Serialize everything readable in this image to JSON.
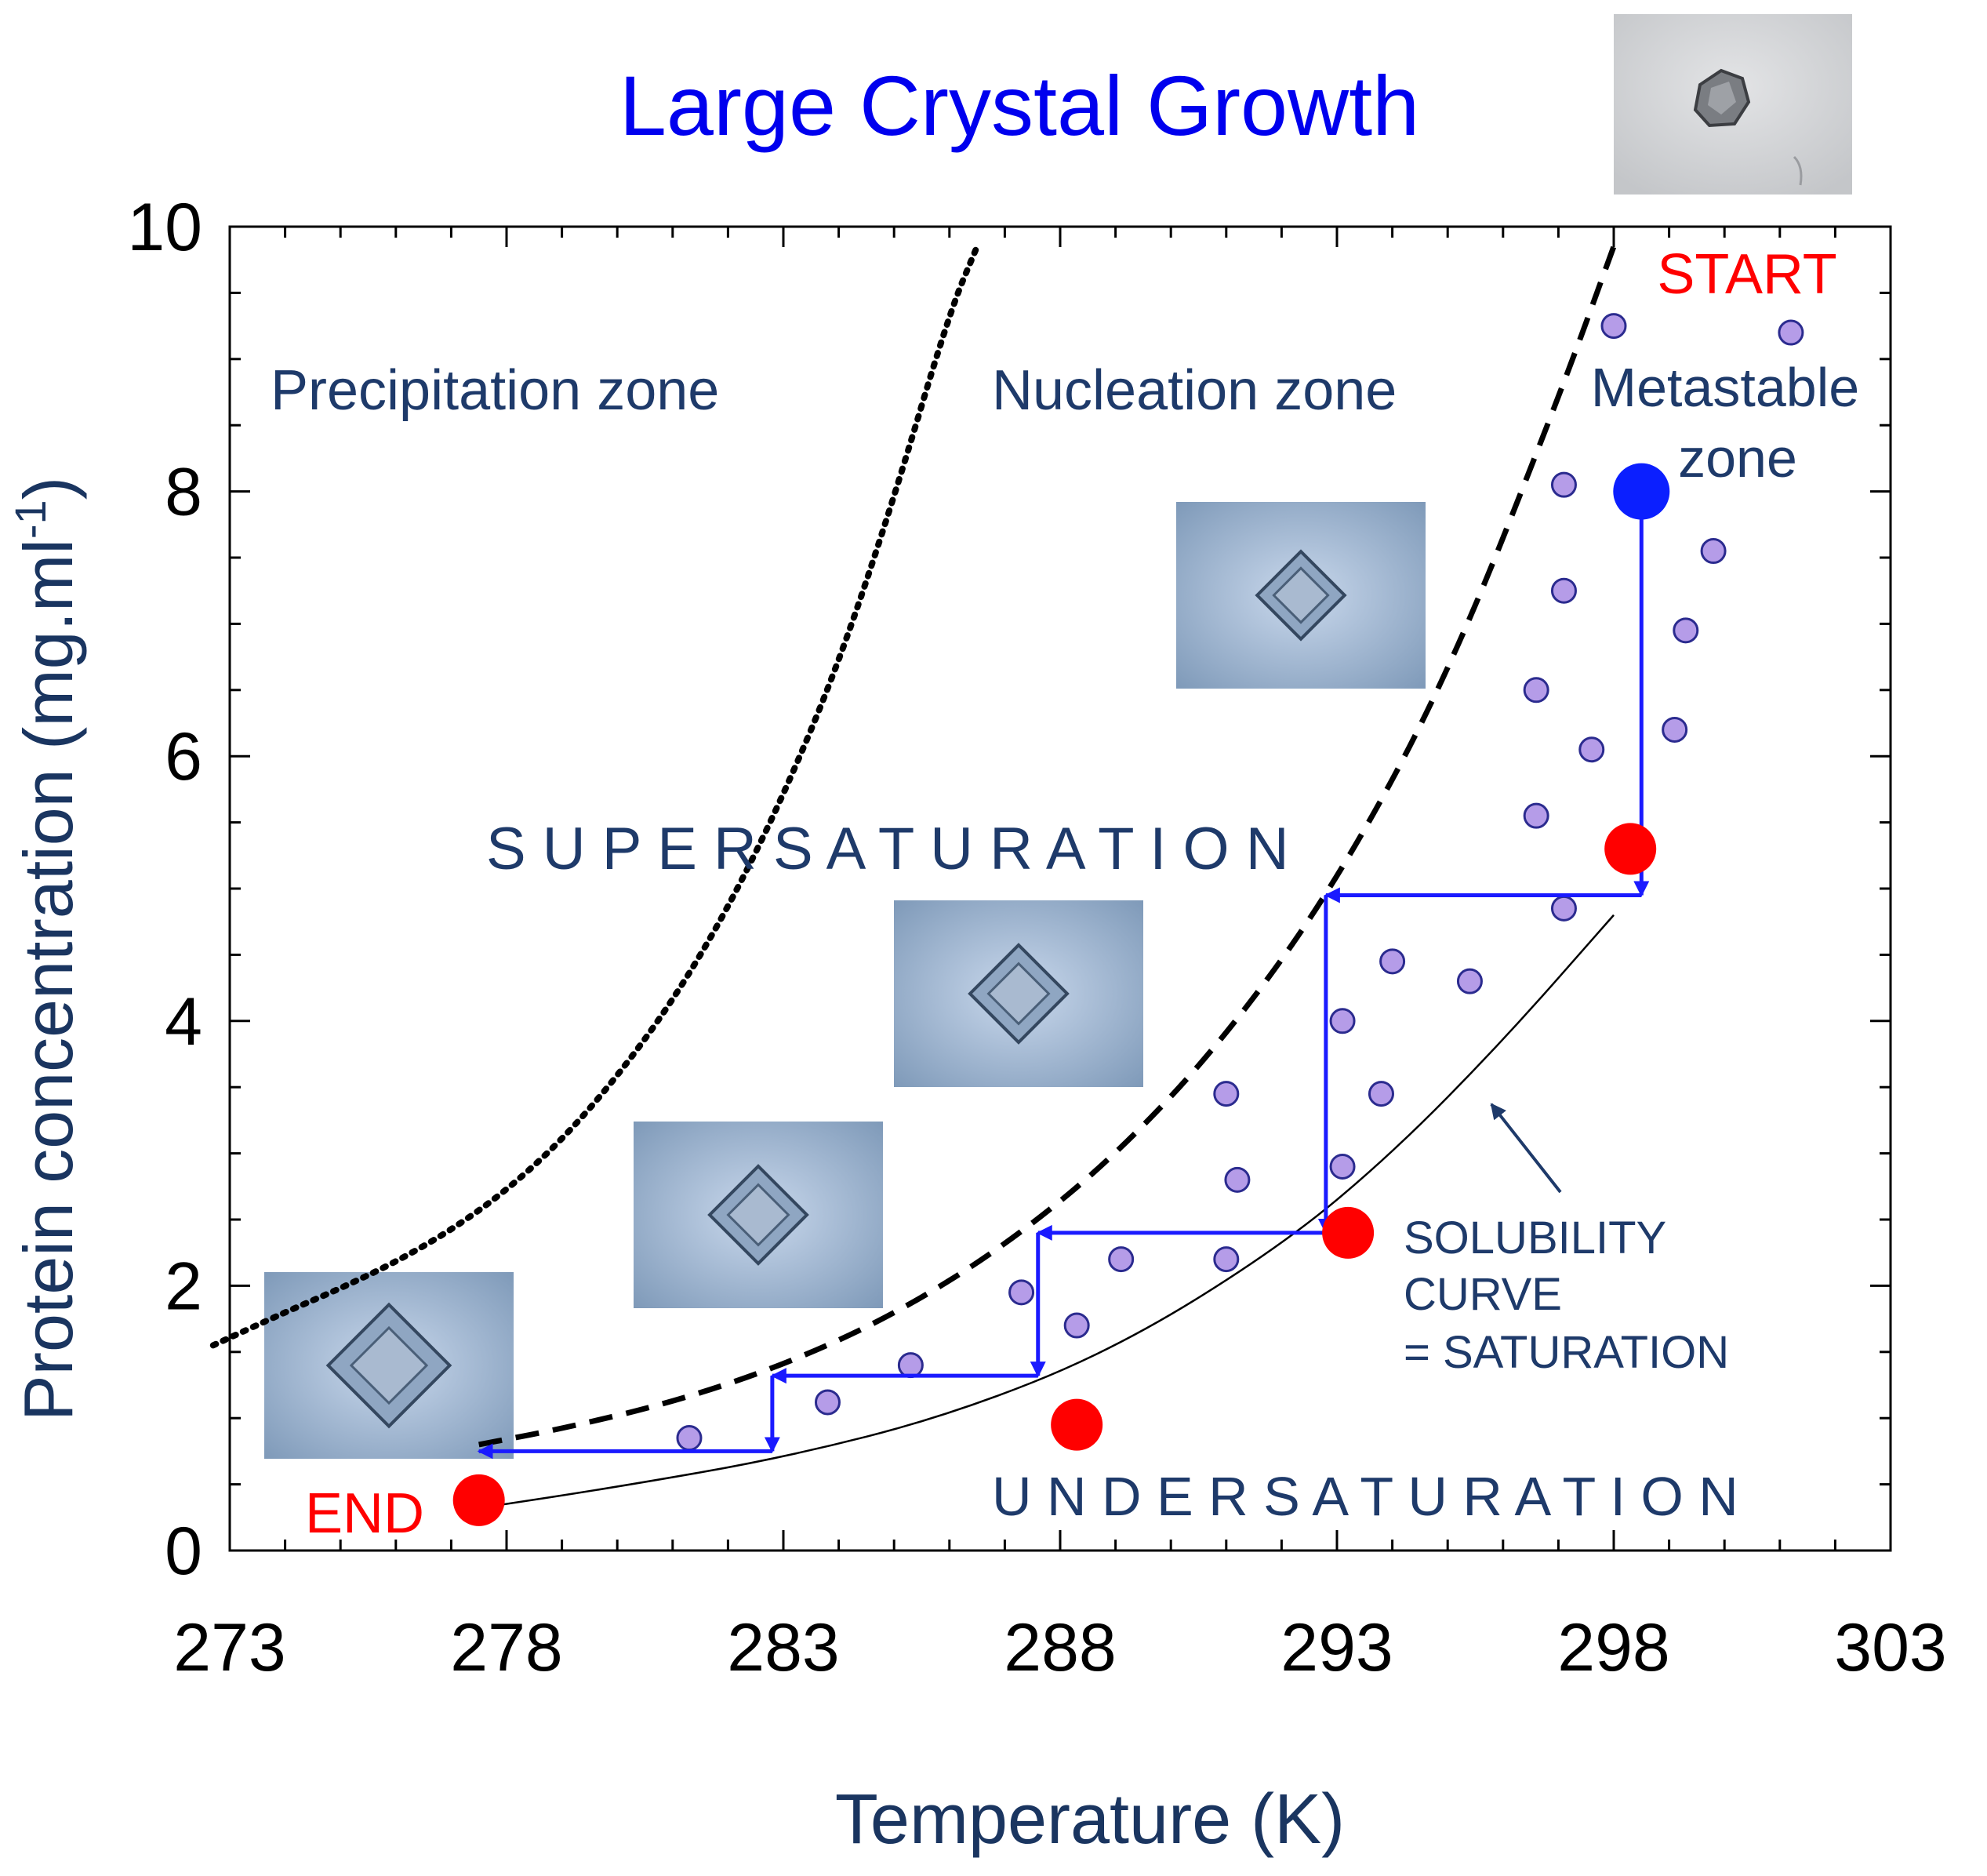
{
  "chart_data": {
    "type": "scatter",
    "title": "Large Crystal Growth",
    "xlabel": "Temperature (K)",
    "ylabel": "Protein concentration (mg.ml",
    "ylabel_superscript": "-1",
    "ylabel_close": ")",
    "xlim": [
      273,
      303
    ],
    "ylim": [
      0,
      10
    ],
    "xticks": [
      273,
      278,
      283,
      288,
      293,
      298,
      303
    ],
    "yticks": [
      0,
      2,
      4,
      6,
      8,
      10
    ],
    "zones": {
      "precipitation": "Precipitation zone",
      "nucleation": "Nucleation zone",
      "metastable_line1": "Metastable",
      "metastable_line2": "zone"
    },
    "labels": {
      "start": "START",
      "end": "END",
      "supersaturation": "S U P E R S A T U R A T I O N",
      "undersaturation": "U N D E R S A T U R A T I O N",
      "solubility_line1": "SOLUBILITY",
      "solubility_line2": "CURVE",
      "solubility_line3": "= SATURATION"
    },
    "curves": [
      {
        "name": "precipitation-boundary",
        "style": "dotted",
        "x": [
          272.7,
          274,
          275,
          276,
          277,
          278,
          279,
          280,
          281,
          282,
          283,
          284,
          285,
          286,
          286.5
        ],
        "y": [
          1.55,
          1.8,
          1.98,
          2.18,
          2.42,
          2.72,
          3.1,
          3.58,
          4.15,
          4.85,
          5.7,
          6.7,
          7.95,
          9.35,
          9.85
        ]
      },
      {
        "name": "nucleation-boundary",
        "style": "dashed",
        "x": [
          277.5,
          279,
          281,
          283,
          285,
          287,
          289,
          291,
          293,
          295,
          297,
          298
        ],
        "y": [
          0.8,
          0.92,
          1.12,
          1.4,
          1.78,
          2.3,
          2.98,
          3.88,
          5.05,
          6.6,
          8.7,
          9.85
        ]
      },
      {
        "name": "solubility-curve",
        "style": "solid",
        "x": [
          277.5,
          280,
          283,
          286,
          289,
          292,
          294,
          296,
          298
        ],
        "y": [
          0.32,
          0.48,
          0.7,
          1.02,
          1.52,
          2.3,
          3.0,
          3.85,
          4.8
        ]
      }
    ],
    "metastable_points": {
      "x": [
        298.0,
        301.2,
        297.1,
        299.8,
        297.1,
        299.3,
        296.6,
        297.6,
        299.1,
        296.6,
        297.1,
        294.0,
        295.4,
        291.0,
        293.1,
        293.8,
        291.2,
        293.1,
        289.1,
        291.0,
        287.3,
        288.3,
        285.3,
        283.8,
        281.3
      ],
      "y": [
        9.25,
        9.2,
        8.05,
        7.55,
        7.25,
        6.95,
        6.5,
        6.05,
        6.2,
        5.55,
        4.85,
        4.45,
        4.3,
        3.45,
        4.0,
        3.45,
        2.8,
        2.9,
        2.2,
        2.2,
        1.95,
        1.7,
        1.4,
        1.12,
        0.85
      ]
    },
    "path_arrows": [
      {
        "from": [
          298.5,
          8.0
        ],
        "to": [
          298.5,
          4.95
        ]
      },
      {
        "from": [
          298.5,
          4.95
        ],
        "to": [
          292.8,
          4.95
        ]
      },
      {
        "from": [
          292.8,
          4.95
        ],
        "to": [
          292.8,
          2.4
        ]
      },
      {
        "from": [
          292.8,
          2.4
        ],
        "to": [
          287.6,
          2.4
        ]
      },
      {
        "from": [
          287.6,
          2.4
        ],
        "to": [
          287.6,
          1.32
        ]
      },
      {
        "from": [
          287.6,
          1.32
        ],
        "to": [
          282.8,
          1.32
        ]
      },
      {
        "from": [
          282.8,
          1.32
        ],
        "to": [
          282.8,
          0.75
        ]
      },
      {
        "from": [
          282.8,
          0.75
        ],
        "to": [
          277.5,
          0.75
        ]
      }
    ],
    "start_point": {
      "x": 298.5,
      "y": 8.0
    },
    "saturation_points": {
      "x": [
        298.3,
        293.2,
        288.3,
        277.5
      ],
      "y": [
        5.3,
        2.4,
        0.95,
        0.38
      ]
    },
    "colors": {
      "title": "#0000ee",
      "zone_text": "#1e3a6a",
      "axis_label": "#1a3560",
      "axis": "#000000",
      "arrows": "#1a1aff",
      "start_point": "#0b1fff",
      "saturation_points": "#ff0000",
      "start_end_text": "#ff0000",
      "metastable_fill": "#b59ce8",
      "metastable_stroke": "#2b2b8f",
      "curve": "#000000"
    }
  }
}
